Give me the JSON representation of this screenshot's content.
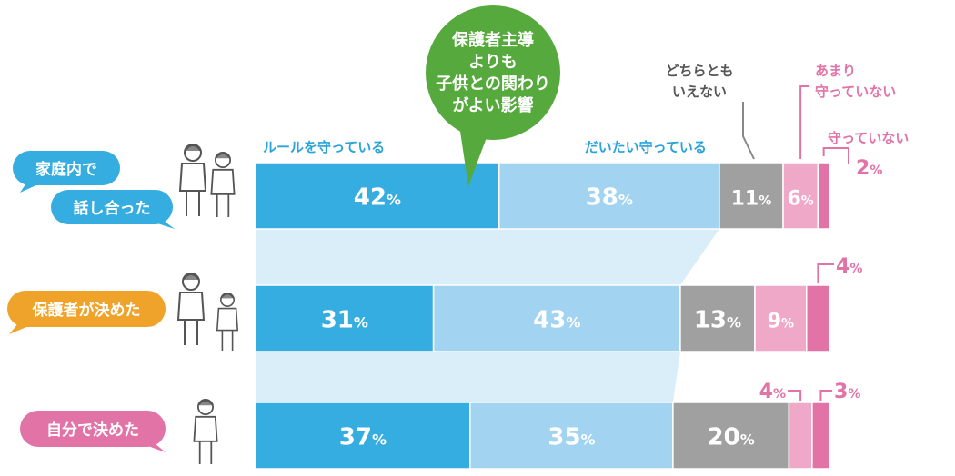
{
  "chart_data": {
    "type": "bar",
    "stacked": true,
    "orientation": "horizontal",
    "categories": [
      [
        "家庭内で",
        "話し合った"
      ],
      [
        "保護者が決めた"
      ],
      [
        "自分で決めた"
      ]
    ],
    "series": [
      {
        "name": "ルールを守っている",
        "values": [
          42,
          31,
          37
        ],
        "color": "#35ade0"
      },
      {
        "name": "だいたい守っている",
        "values": [
          38,
          43,
          35
        ],
        "color": "#a2d4f1"
      },
      {
        "name": "どちらとも いえない",
        "values": [
          11,
          13,
          20
        ],
        "color": "#a0a0a0"
      },
      {
        "name": "あまり 守っていない",
        "values": [
          6,
          9,
          4
        ],
        "color": "#f0a8c9"
      },
      {
        "name": "守っていない",
        "values": [
          2,
          4,
          3
        ],
        "color": "#e273a6"
      }
    ],
    "unit": "%",
    "category_colors": [
      "#35ade0",
      "#f0a32a",
      "#e273a6"
    ],
    "callout": [
      "保護者主導",
      "よりも",
      "子供との関わり",
      "がよい影響"
    ],
    "callout_color": "#56a93d",
    "xlim": [
      0,
      100
    ]
  }
}
